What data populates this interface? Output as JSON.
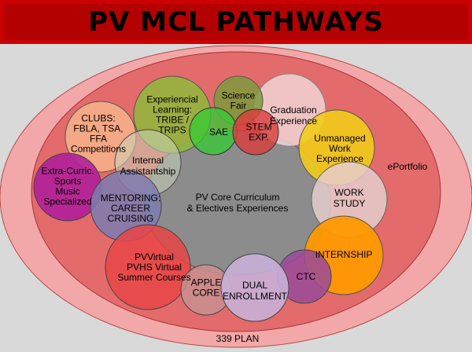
{
  "title": "PV MCL PATHWAYS",
  "outer_label": "339 PLAN",
  "inner_label": "ePortfolio",
  "core_label": [
    "PV Core Curriculum",
    "& Electives Experiences"
  ],
  "nodes": {
    "experiential": [
      "Experiencial",
      "Learning:",
      "TRIBE /",
      "TRIPS"
    ],
    "science_fair": [
      "Science",
      "Fair"
    ],
    "graduation": [
      "Graduation",
      "Experience"
    ],
    "sae": [
      "SAE"
    ],
    "stem": [
      "STEM",
      "EXP."
    ],
    "clubs": [
      "CLUBS:",
      "FBLA, TSA,",
      "FFA",
      "Competitions"
    ],
    "internal": [
      "Internal",
      "Assistantship"
    ],
    "unmanaged": [
      "Unmanaged",
      "Work",
      "Experience"
    ],
    "extra": [
      "Extra-Curric.",
      "Sports",
      "Music",
      "Specialized"
    ],
    "mentoring": [
      "MENTORING:",
      "CAREER",
      "CRUISING"
    ],
    "work_study": [
      "WORK",
      "STUDY"
    ],
    "internship": [
      "INTERNSHIP"
    ],
    "pvvirtual": [
      "PVVirtual",
      "PVHS Virtual",
      "Summer Courses"
    ],
    "apple": [
      "APPLE",
      "CORE"
    ],
    "dual": [
      "DUAL",
      "ENROLLMENT"
    ],
    "ctc": [
      "CTC"
    ]
  },
  "colors": {
    "title_bg": "#cc0000",
    "outer_ellipse": "#f2a8a8",
    "inner_ellipse": "#e36b6b",
    "core": "#8c8c8c"
  }
}
